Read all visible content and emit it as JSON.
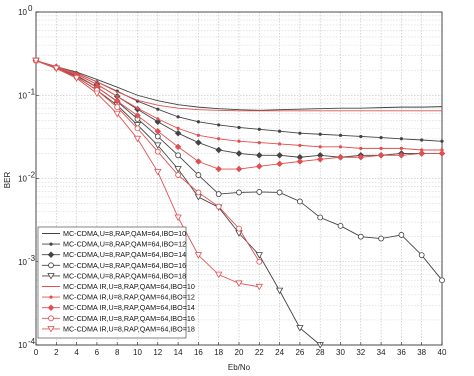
{
  "chart_data": {
    "type": "line",
    "title": "",
    "xlabel": "Eb/No",
    "ylabel": "BER",
    "xlim": [
      0,
      40
    ],
    "ylim": [
      0.0001,
      1
    ],
    "yscale": "log",
    "grid": true,
    "legend_position": "bottom-left",
    "x_ticks": [
      "0",
      "2",
      "4",
      "6",
      "8",
      "10",
      "12",
      "14",
      "16",
      "18",
      "20",
      "22",
      "24",
      "26",
      "28",
      "30",
      "32",
      "34",
      "36",
      "38",
      "40"
    ],
    "y_ticks": [
      {
        "value": 1,
        "mantissa": "10",
        "exp": "0"
      },
      {
        "value": 0.1,
        "mantissa": "10",
        "exp": "-1"
      },
      {
        "value": 0.01,
        "mantissa": "10",
        "exp": "-2"
      },
      {
        "value": 0.001,
        "mantissa": "10",
        "exp": "-3"
      },
      {
        "value": 0.0001,
        "mantissa": "10",
        "exp": "-4"
      }
    ],
    "series": [
      {
        "name": "MC-CDMA,U=8,RAP,QAM=64,IBO=10",
        "color": "#444444",
        "marker": "none",
        "x": [
          0,
          2,
          4,
          6,
          8,
          10,
          12,
          14,
          16,
          18,
          20,
          22,
          24,
          26,
          28,
          30,
          32,
          34,
          36,
          38,
          40
        ],
        "y": [
          0.26,
          0.22,
          0.19,
          0.155,
          0.125,
          0.1,
          0.086,
          0.077,
          0.072,
          0.069,
          0.067,
          0.066,
          0.067,
          0.068,
          0.069,
          0.07,
          0.07,
          0.071,
          0.072,
          0.072,
          0.073
        ]
      },
      {
        "name": "MC-CDMA,U=8,RAP,QAM=64,IBO=12",
        "color": "#444444",
        "marker": "dot",
        "x": [
          0,
          2,
          4,
          6,
          8,
          10,
          12,
          14,
          16,
          18,
          20,
          22,
          24,
          26,
          28,
          30,
          32,
          34,
          36,
          38,
          40
        ],
        "y": [
          0.26,
          0.22,
          0.185,
          0.145,
          0.112,
          0.085,
          0.068,
          0.055,
          0.048,
          0.044,
          0.041,
          0.039,
          0.037,
          0.035,
          0.034,
          0.033,
          0.032,
          0.031,
          0.03,
          0.029,
          0.028
        ]
      },
      {
        "name": "MC-CDMA,U=8,RAP,QAM=64,IBO=14",
        "color": "#444444",
        "marker": "diamond",
        "x": [
          0,
          2,
          4,
          6,
          8,
          10,
          12,
          14,
          16,
          18,
          20,
          22,
          24,
          26,
          28,
          30,
          32,
          34,
          36,
          38,
          40
        ],
        "y": [
          0.26,
          0.22,
          0.18,
          0.135,
          0.097,
          0.068,
          0.048,
          0.035,
          0.027,
          0.022,
          0.02,
          0.019,
          0.019,
          0.018,
          0.019,
          0.018,
          0.019,
          0.019,
          0.02,
          0.02,
          0.02
        ]
      },
      {
        "name": "MC-CDMA,U=8,RAP,QAM=64,IBO=16",
        "color": "#444444",
        "marker": "circle",
        "x": [
          0,
          2,
          4,
          6,
          8,
          10,
          12,
          14,
          16,
          18,
          20,
          22,
          24,
          26,
          28,
          30,
          32,
          34,
          36,
          38,
          40
        ],
        "y": [
          0.26,
          0.215,
          0.17,
          0.125,
          0.084,
          0.052,
          0.032,
          0.019,
          0.011,
          0.0065,
          0.0068,
          0.0069,
          0.0068,
          0.0053,
          0.0034,
          0.0027,
          0.002,
          0.0019,
          0.0021,
          0.0012,
          0.0006
        ]
      },
      {
        "name": "MC-CDMA,U=8,RAP,QAM=64,IBO=18",
        "color": "#444444",
        "marker": "triangle-down",
        "x": [
          0,
          2,
          4,
          6,
          8,
          10,
          12,
          14,
          16,
          18,
          20,
          22,
          24,
          26,
          28,
          30,
          32,
          34,
          36,
          38,
          40
        ],
        "y": [
          0.26,
          0.21,
          0.165,
          0.115,
          0.076,
          0.044,
          0.025,
          0.013,
          0.006,
          0.0045,
          0.0022,
          0.0012,
          0.00045,
          0.00016,
          0.0001,
          null,
          null,
          null,
          null,
          null,
          null
        ]
      },
      {
        "name": "MC-CDMA IR,U=8,RAP,QAM=64,IBO=10",
        "color": "#e05050",
        "marker": "none",
        "x": [
          0,
          2,
          4,
          6,
          8,
          10,
          12,
          14,
          16,
          18,
          20,
          22,
          24,
          26,
          28,
          30,
          32,
          34,
          36,
          38,
          40
        ],
        "y": [
          0.26,
          0.22,
          0.185,
          0.145,
          0.11,
          0.087,
          0.076,
          0.07,
          0.067,
          0.066,
          0.065,
          0.065,
          0.065,
          0.065,
          0.065,
          0.065,
          0.065,
          0.065,
          0.065,
          0.065,
          0.065
        ]
      },
      {
        "name": "MC-CDMA IR,U=8,RAP,QAM=64,IBO=12",
        "color": "#e05050",
        "marker": "dot",
        "x": [
          0,
          2,
          4,
          6,
          8,
          10,
          12,
          14,
          16,
          18,
          20,
          22,
          24,
          26,
          28,
          30,
          32,
          34,
          36,
          38,
          40
        ],
        "y": [
          0.26,
          0.22,
          0.18,
          0.135,
          0.097,
          0.07,
          0.052,
          0.04,
          0.033,
          0.03,
          0.028,
          0.027,
          0.026,
          0.025,
          0.024,
          0.024,
          0.023,
          0.023,
          0.023,
          0.022,
          0.022
        ]
      },
      {
        "name": "MC-CDMA IR,U=8,RAP,QAM=64,IBO=14",
        "color": "#e05050",
        "marker": "diamond",
        "x": [
          0,
          2,
          4,
          6,
          8,
          10,
          12,
          14,
          16,
          18,
          20,
          22,
          24,
          26,
          28,
          30,
          32,
          34,
          36,
          38,
          40
        ],
        "y": [
          0.26,
          0.22,
          0.175,
          0.125,
          0.085,
          0.057,
          0.037,
          0.024,
          0.016,
          0.013,
          0.013,
          0.014,
          0.015,
          0.016,
          0.017,
          0.018,
          0.018,
          0.019,
          0.019,
          0.02,
          0.02
        ]
      },
      {
        "name": "MC-CDMA IR,U=8,RAP,QAM=64,IBO=16",
        "color": "#e05050",
        "marker": "circle",
        "x": [
          0,
          2,
          4,
          6,
          8,
          10,
          12,
          14,
          16,
          18,
          20,
          22
        ],
        "y": [
          0.26,
          0.215,
          0.165,
          0.115,
          0.072,
          0.04,
          0.021,
          0.011,
          0.0068,
          0.0046,
          0.0025,
          0.001
        ]
      },
      {
        "name": "MC-CDMA IR,U=8,RAP,QAM=64,IBO=18",
        "color": "#e05050",
        "marker": "triangle-down",
        "x": [
          0,
          2,
          4,
          6,
          8,
          10,
          12,
          14,
          16,
          18,
          20,
          22
        ],
        "y": [
          0.26,
          0.21,
          0.16,
          0.105,
          0.06,
          0.03,
          0.012,
          0.0034,
          0.0012,
          0.0007,
          0.00055,
          0.0005
        ]
      }
    ]
  }
}
